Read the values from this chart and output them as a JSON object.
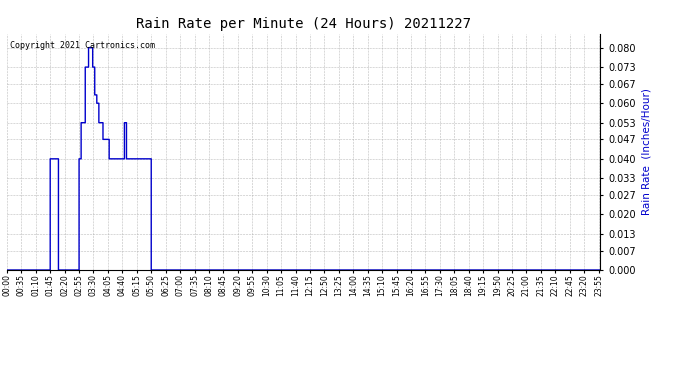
{
  "title": "Rain Rate per Minute (24 Hours) 20211227",
  "ylabel": "Rain Rate  (Inches/Hour)",
  "copyright_text": "Copyright 2021 Cartronics.com",
  "background_color": "#ffffff",
  "plot_background_color": "#ffffff",
  "line_color": "#0000cc",
  "grid_color": "#aaaaaa",
  "ylim": [
    0.0,
    0.085
  ],
  "yticks": [
    0.0,
    0.007,
    0.013,
    0.02,
    0.027,
    0.033,
    0.04,
    0.047,
    0.053,
    0.06,
    0.067,
    0.073,
    0.08
  ],
  "xtick_labels": [
    "00:00",
    "00:35",
    "01:10",
    "01:45",
    "02:20",
    "02:55",
    "03:30",
    "04:05",
    "04:40",
    "05:15",
    "05:50",
    "06:25",
    "07:00",
    "07:35",
    "08:10",
    "08:45",
    "09:20",
    "09:55",
    "10:30",
    "11:05",
    "11:40",
    "12:15",
    "12:50",
    "13:25",
    "14:00",
    "14:35",
    "15:10",
    "15:45",
    "16:20",
    "16:55",
    "17:30",
    "18:05",
    "18:40",
    "19:15",
    "19:50",
    "20:25",
    "21:00",
    "21:35",
    "22:10",
    "22:45",
    "23:20",
    "23:55"
  ]
}
